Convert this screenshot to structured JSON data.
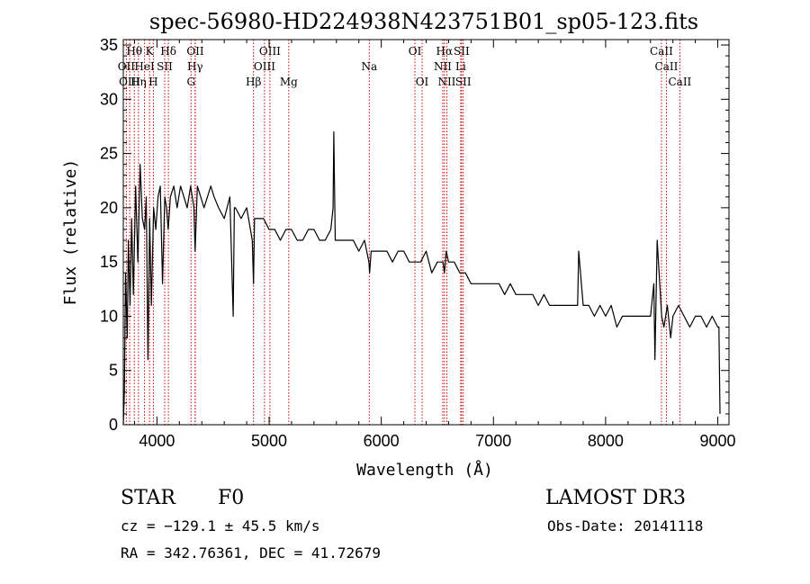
{
  "chart_data": {
    "type": "line",
    "title": "spec-56980-HD224938N423751B01_sp05-123.fits",
    "xlabel": "Wavelength (Å)",
    "ylabel": "Flux (relative)",
    "xlim": [
      3700,
      9100
    ],
    "ylim": [
      0,
      35.5
    ],
    "x_ticks": [
      4000,
      5000,
      6000,
      7000,
      8000,
      9000
    ],
    "x_tick_labels": [
      "4000",
      "5000",
      "6000",
      "7000",
      "8000",
      "9000"
    ],
    "y_ticks": [
      0,
      5,
      10,
      15,
      20,
      25,
      30,
      35
    ],
    "y_tick_labels": [
      "0",
      "5",
      "10",
      "15",
      "20",
      "25",
      "30",
      "35"
    ],
    "series": [
      {
        "name": "spectrum",
        "x": [
          3700,
          3710,
          3720,
          3735,
          3745,
          3760,
          3775,
          3790,
          3810,
          3830,
          3850,
          3870,
          3890,
          3905,
          3920,
          3935,
          3950,
          3970,
          3990,
          4010,
          4030,
          4050,
          4070,
          4085,
          4100,
          4120,
          4150,
          4180,
          4210,
          4240,
          4270,
          4300,
          4330,
          4340,
          4360,
          4390,
          4420,
          4450,
          4480,
          4510,
          4550,
          4600,
          4650,
          4680,
          4690,
          4700,
          4750,
          4800,
          4850,
          4861,
          4870,
          4900,
          4950,
          5000,
          5050,
          5100,
          5150,
          5200,
          5250,
          5300,
          5350,
          5400,
          5450,
          5500,
          5550,
          5570,
          5577,
          5590,
          5650,
          5700,
          5750,
          5800,
          5850,
          5890,
          5896,
          5910,
          5950,
          6000,
          6050,
          6100,
          6150,
          6200,
          6250,
          6300,
          6350,
          6400,
          6450,
          6500,
          6550,
          6563,
          6580,
          6600,
          6650,
          6700,
          6750,
          6800,
          6850,
          6900,
          6950,
          7000,
          7050,
          7100,
          7150,
          7200,
          7250,
          7300,
          7350,
          7400,
          7450,
          7500,
          7550,
          7600,
          7650,
          7700,
          7750,
          7760,
          7800,
          7850,
          7900,
          7950,
          8000,
          8050,
          8100,
          8150,
          8200,
          8250,
          8300,
          8350,
          8400,
          8430,
          8440,
          8460,
          8500,
          8520,
          8550,
          8580,
          8600,
          8650,
          8700,
          8750,
          8800,
          8850,
          8900,
          8950,
          9000,
          9010,
          9020
        ],
        "values": [
          0,
          3,
          14,
          8,
          17,
          11,
          19,
          12,
          22,
          15,
          24,
          19,
          18,
          21,
          6,
          19,
          11,
          20,
          18,
          21,
          22,
          13,
          21,
          20,
          18,
          21,
          22,
          20,
          22,
          21,
          20,
          22,
          20,
          16,
          22,
          21,
          20,
          21,
          22,
          21,
          20,
          19,
          21,
          10,
          20,
          20,
          19,
          20,
          17,
          13,
          19,
          19,
          19,
          18,
          18,
          17,
          18,
          18,
          17,
          17,
          18,
          18,
          17,
          17,
          18,
          20,
          27,
          17,
          17,
          17,
          17,
          16,
          17,
          15,
          14,
          16,
          16,
          16,
          16,
          15,
          16,
          16,
          15,
          15,
          15,
          16,
          14,
          15,
          15,
          14,
          16,
          15,
          15,
          14,
          14,
          13,
          13,
          13,
          13,
          13,
          13,
          12,
          13,
          12,
          12,
          12,
          12,
          11,
          12,
          11,
          11,
          11,
          11,
          11,
          11,
          16,
          11,
          11,
          10,
          11,
          10,
          11,
          9,
          10,
          10,
          10,
          10,
          10,
          10,
          13,
          6,
          17,
          10,
          9,
          11,
          8,
          10,
          11,
          10,
          9,
          10,
          10,
          9,
          10,
          9,
          9,
          1
        ]
      }
    ],
    "spectral_lines": [
      {
        "row": 1,
        "label": "Hθ",
        "x": 3798
      },
      {
        "row": 1,
        "label": "K",
        "x": 3934
      },
      {
        "row": 1,
        "label": "Hδ",
        "x": 4102
      },
      {
        "row": 1,
        "label": "OII",
        "x": 4342
      },
      {
        "row": 1,
        "label": "OIII",
        "x": 5007
      },
      {
        "row": 1,
        "label": "OI",
        "x": 6300
      },
      {
        "row": 1,
        "label": "Hα",
        "x": 6563
      },
      {
        "row": 1,
        "label": "SII",
        "x": 6716
      },
      {
        "row": 1,
        "label": "CaII",
        "x": 8498
      },
      {
        "row": 2,
        "label": "OII",
        "x": 3727
      },
      {
        "row": 2,
        "label": "HeI",
        "x": 3889
      },
      {
        "row": 2,
        "label": "SII",
        "x": 4069
      },
      {
        "row": 2,
        "label": "Hγ",
        "x": 4340
      },
      {
        "row": 2,
        "label": "OIII",
        "x": 4959
      },
      {
        "row": 2,
        "label": "Na",
        "x": 5893
      },
      {
        "row": 2,
        "label": "NII",
        "x": 6548
      },
      {
        "row": 2,
        "label": "Li",
        "x": 6708
      },
      {
        "row": 2,
        "label": "CaII",
        "x": 8542
      },
      {
        "row": 3,
        "label": "OIII",
        "x": 3757
      },
      {
        "row": 3,
        "label": "Hη",
        "x": 3835
      },
      {
        "row": 3,
        "label": "H",
        "x": 3968
      },
      {
        "row": 3,
        "label": "G",
        "x": 4304
      },
      {
        "row": 3,
        "label": "Hβ",
        "x": 4861
      },
      {
        "row": 3,
        "label": "Mg",
        "x": 5175
      },
      {
        "row": 3,
        "label": "OI",
        "x": 6364
      },
      {
        "row": 3,
        "label": "NII",
        "x": 6584
      },
      {
        "row": 3,
        "label": "SII",
        "x": 6731
      },
      {
        "row": 3,
        "label": "CaII",
        "x": 8662
      }
    ]
  },
  "info": {
    "object_class": "STAR",
    "subclass": "F0",
    "survey": "LAMOST DR3",
    "redshift": "cz = −129.1 ± 45.5 km/s",
    "obs_date": "Obs-Date: 20141118",
    "coords": "RA = 342.76361, DEC =  41.72679"
  },
  "colors": {
    "line_marker": "#cc0000",
    "spectrum": "#000000",
    "axes": "#000000"
  }
}
